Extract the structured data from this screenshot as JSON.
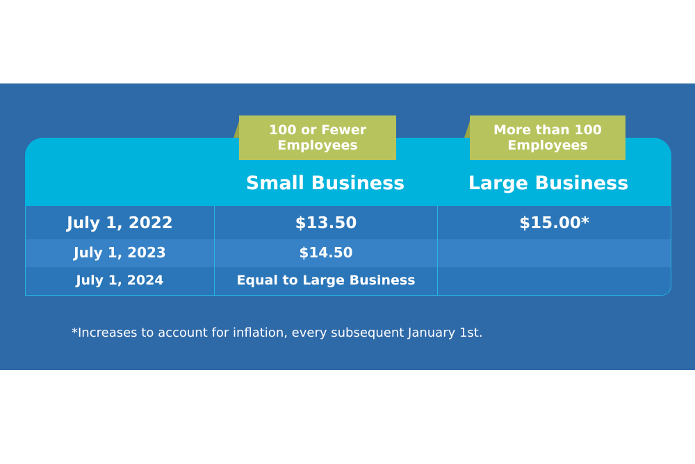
{
  "tags": {
    "small": {
      "line1": "100 or Fewer",
      "line2": "Employees"
    },
    "large": {
      "line1": "More than 100",
      "line2": "Employees"
    }
  },
  "columns": {
    "small": "Small Business",
    "large": "Large Business"
  },
  "rows": [
    {
      "date": "July 1, 2022",
      "small": "$13.50",
      "large": "$15.00*"
    },
    {
      "date": "July 1, 2023",
      "small": "$14.50",
      "large": ""
    },
    {
      "date": "July 1, 2024",
      "small": "Equal to Large Business",
      "large": ""
    }
  ],
  "footnote": "*Increases to account for inflation, every subsequent January 1st.",
  "colors": {
    "background": "#2e69a8",
    "header_band": "#00b3dc",
    "tag": "#b7c35d",
    "row_dark": "#2b76b8",
    "row_light": "#3782c6",
    "text": "#ffffff"
  }
}
